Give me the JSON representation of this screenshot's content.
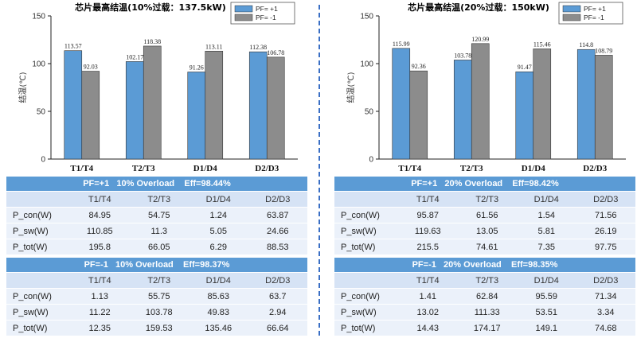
{
  "chart_data": [
    {
      "type": "bar",
      "title": "芯片最高结温(10%过载：137.5kW)",
      "ylabel": "结温(℃)",
      "ylim": [
        0,
        150
      ],
      "yticks": [
        0,
        50,
        100,
        150
      ],
      "categories": [
        "T1/T4",
        "T2/T3",
        "D1/D4",
        "D2/D3"
      ],
      "series": [
        {
          "name": "PF= +1",
          "color": "#5b9bd5",
          "values": [
            113.57,
            102.17,
            91.26,
            112.38
          ],
          "labels": [
            "113.57",
            "102.17",
            "91.26",
            "112.38"
          ]
        },
        {
          "name": "PF= -1",
          "color": "#8c8c8c",
          "values": [
            92.03,
            118.38,
            113.11,
            106.78
          ],
          "labels": [
            "92.03",
            "118.38",
            "113.11",
            "106.78"
          ]
        }
      ],
      "legend": "top-right"
    },
    {
      "type": "bar",
      "title": "芯片最高结温(20%过载：150kW)",
      "ylabel": "结温(℃)",
      "ylim": [
        0,
        150
      ],
      "yticks": [
        0,
        50,
        100,
        150
      ],
      "categories": [
        "T1/T4",
        "T2/T3",
        "D1/D4",
        "D2/D3"
      ],
      "series": [
        {
          "name": "PF= +1",
          "color": "#5b9bd5",
          "values": [
            115.99,
            103.78,
            91.47,
            114.8
          ],
          "labels": [
            "115.99",
            "103.78",
            "91.47",
            "114.8"
          ]
        },
        {
          "name": "PF= -1",
          "color": "#8c8c8c",
          "values": [
            92.36,
            120.99,
            115.46,
            108.79
          ],
          "labels": [
            "92.36",
            "120.99",
            "115.46",
            "108.79"
          ]
        }
      ],
      "legend": "top-right"
    }
  ],
  "tables": [
    {
      "title": "PF=+1   10% Overload    Eff=98.44%",
      "columns": [
        "",
        "T1/T4",
        "T2/T3",
        "D1/D4",
        "D2/D3"
      ],
      "rows": [
        {
          "label": "P_con(W)",
          "cells": [
            "84.95",
            "54.75",
            "1.24",
            "63.87"
          ]
        },
        {
          "label": "P_sw(W)",
          "cells": [
            "110.85",
            "11.3",
            "5.05",
            "24.66"
          ]
        },
        {
          "label": "P_tot(W)",
          "cells": [
            "195.8",
            "66.05",
            "6.29",
            "88.53"
          ]
        }
      ]
    },
    {
      "title": "PF=-1   10% Overload    Eff=98.37%",
      "columns": [
        "",
        "T1/T4",
        "T2/T3",
        "D1/D4",
        "D2/D3"
      ],
      "rows": [
        {
          "label": "P_con(W)",
          "cells": [
            "1.13",
            "55.75",
            "85.63",
            "63.7"
          ]
        },
        {
          "label": "P_sw(W)",
          "cells": [
            "11.22",
            "103.78",
            "49.83",
            "2.94"
          ]
        },
        {
          "label": "P_tot(W)",
          "cells": [
            "12.35",
            "159.53",
            "135.46",
            "66.64"
          ]
        }
      ]
    },
    {
      "title": "PF=+1   20% Overload    Eff=98.42%",
      "columns": [
        "",
        "T1/T4",
        "T2/T3",
        "D1/D4",
        "D2/D3"
      ],
      "rows": [
        {
          "label": "P_con(W)",
          "cells": [
            "95.87",
            "61.56",
            "1.54",
            "71.56"
          ]
        },
        {
          "label": "P_sw(W)",
          "cells": [
            "119.63",
            "13.05",
            "5.81",
            "26.19"
          ]
        },
        {
          "label": "P_tot(W)",
          "cells": [
            "215.5",
            "74.61",
            "7.35",
            "97.75"
          ]
        }
      ]
    },
    {
      "title": "PF=-1   20% Overload    Eff=98.35%",
      "columns": [
        "",
        "T1/T4",
        "T2/T3",
        "D1/D4",
        "D2/D3"
      ],
      "rows": [
        {
          "label": "P_con(W)",
          "cells": [
            "1.41",
            "62.84",
            "95.59",
            "71.34"
          ]
        },
        {
          "label": "P_sw(W)",
          "cells": [
            "13.02",
            "111.33",
            "53.51",
            "3.34"
          ]
        },
        {
          "label": "P_tot(W)",
          "cells": [
            "14.43",
            "174.17",
            "149.1",
            "74.68"
          ]
        }
      ]
    }
  ]
}
